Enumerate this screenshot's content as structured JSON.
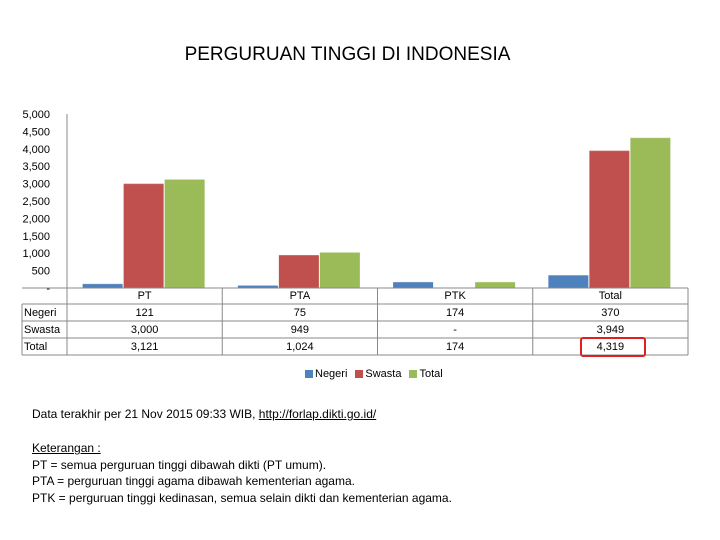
{
  "chart_data": {
    "type": "bar",
    "title": "PERGURUAN TINGGI DI INDONESIA",
    "categories": [
      "PT",
      "PTA",
      "PTK",
      "Total"
    ],
    "series": [
      {
        "name": "Negeri",
        "values": [
          121,
          75,
          174,
          370
        ],
        "labels": [
          "121",
          "75",
          "174",
          "370"
        ],
        "color": "#4f81bd"
      },
      {
        "name": "Swasta",
        "values": [
          3000,
          949,
          0,
          3949
        ],
        "labels": [
          "3,000",
          "949",
          "-",
          "3,949"
        ],
        "color": "#c0504d"
      },
      {
        "name": "Total",
        "values": [
          3121,
          1024,
          174,
          4319
        ],
        "labels": [
          "3,121",
          "1,024",
          "174",
          "4,319"
        ],
        "color": "#9bbb59"
      }
    ],
    "ylim": [
      0,
      5000
    ],
    "yticks": [
      "-",
      "500",
      "1,000",
      "1,500",
      "2,000",
      "2,500",
      "3,000",
      "3,500",
      "4,000",
      "4,500",
      "5,000"
    ],
    "legend_position": "bottom",
    "grid": false
  },
  "footnote": {
    "prefix": "Data terakhir per 21 Nov 2015 09:33 WIB, ",
    "link": "http://forlap.dikti.go.id/"
  },
  "notes": {
    "heading": "Keterangan :",
    "lines": [
      "PT = semua perguruan tinggi dibawah dikti (PT umum).",
      "PTA = perguruan tinggi agama dibawah kementerian agama.",
      "PTK = perguruan tinggi kedinasan, semua selain dikti dan kementerian agama."
    ]
  },
  "highlight_color": "#e02020"
}
